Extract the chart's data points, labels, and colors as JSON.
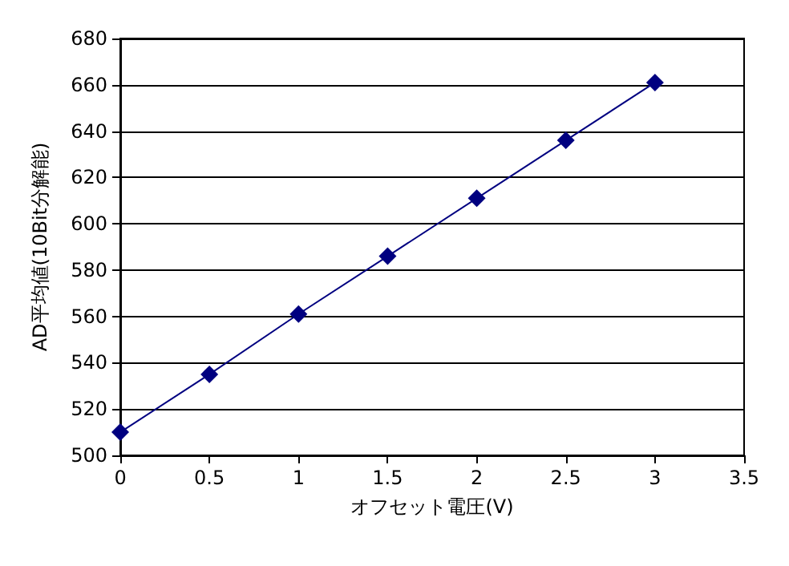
{
  "chart_data": {
    "type": "line",
    "xlabel": "オフセット電圧(V)",
    "ylabel": "AD平均値(10Bit分解能)",
    "x": [
      0,
      0.5,
      1,
      1.5,
      2,
      2.5,
      3
    ],
    "series": [
      {
        "color": "#000080",
        "values": [
          510,
          535,
          561,
          586,
          611,
          636,
          661
        ]
      }
    ],
    "xlim": [
      0,
      3.5
    ],
    "xticks": [
      0,
      0.5,
      1,
      1.5,
      2,
      2.5,
      3,
      3.5
    ],
    "ylim": [
      500,
      680
    ],
    "yticks": [
      500,
      520,
      540,
      560,
      580,
      600,
      620,
      640,
      660,
      680
    ],
    "grid": "y",
    "marker": "diamond",
    "line_style": "solid"
  }
}
